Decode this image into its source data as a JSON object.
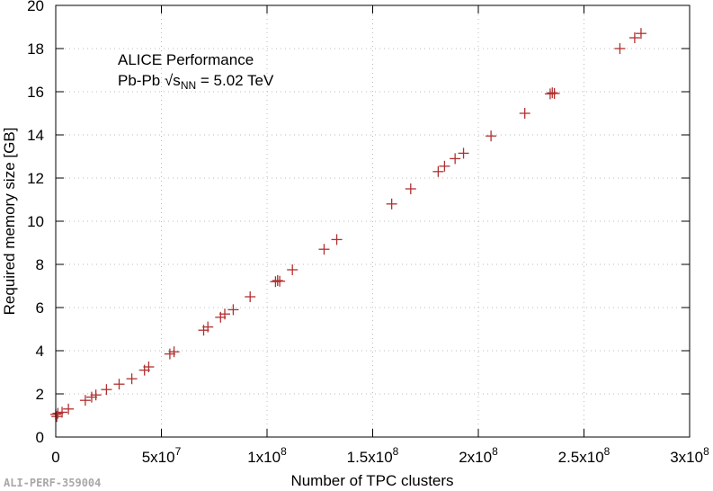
{
  "chart_data": {
    "type": "scatter",
    "title": "",
    "xlabel": "Number of TPC clusters",
    "ylabel": "Required memory size [GB]",
    "xlim": [
      0,
      300000000
    ],
    "ylim": [
      0,
      20
    ],
    "grid": true,
    "x_ticks": [
      {
        "value": 0,
        "mantissa": "0",
        "exp": ""
      },
      {
        "value": 50000000,
        "mantissa": "5x10",
        "exp": "7"
      },
      {
        "value": 100000000,
        "mantissa": "1x10",
        "exp": "8"
      },
      {
        "value": 150000000,
        "mantissa": "1.5x10",
        "exp": "8"
      },
      {
        "value": 200000000,
        "mantissa": "2x10",
        "exp": "8"
      },
      {
        "value": 250000000,
        "mantissa": "2.5x10",
        "exp": "8"
      },
      {
        "value": 300000000,
        "mantissa": "3x10",
        "exp": "8"
      }
    ],
    "y_ticks": [
      "0",
      "2",
      "4",
      "6",
      "8",
      "10",
      "12",
      "14",
      "16",
      "18",
      "20"
    ],
    "annotation": {
      "line1": "ALICE Performance",
      "line2_prefix": "Pb-Pb √s",
      "line2_sub": "NN",
      "line2_suffix": " = 5.02 TeV"
    },
    "marker_color": "#b03030",
    "points": [
      {
        "x": 0,
        "y": 1.05
      },
      {
        "x": 500000,
        "y": 0.95
      },
      {
        "x": 1000000,
        "y": 1.1
      },
      {
        "x": 3000000,
        "y": 1.15
      },
      {
        "x": 6000000,
        "y": 1.3
      },
      {
        "x": 14000000,
        "y": 1.7
      },
      {
        "x": 17000000,
        "y": 1.85
      },
      {
        "x": 19000000,
        "y": 1.95
      },
      {
        "x": 24000000,
        "y": 2.2
      },
      {
        "x": 30000000,
        "y": 2.45
      },
      {
        "x": 36000000,
        "y": 2.7
      },
      {
        "x": 42000000,
        "y": 3.1
      },
      {
        "x": 44000000,
        "y": 3.25
      },
      {
        "x": 54000000,
        "y": 3.85
      },
      {
        "x": 56000000,
        "y": 3.95
      },
      {
        "x": 70000000,
        "y": 4.95
      },
      {
        "x": 72000000,
        "y": 5.1
      },
      {
        "x": 78000000,
        "y": 5.55
      },
      {
        "x": 80000000,
        "y": 5.7
      },
      {
        "x": 84000000,
        "y": 5.9
      },
      {
        "x": 92000000,
        "y": 6.5
      },
      {
        "x": 104000000,
        "y": 7.2
      },
      {
        "x": 105000000,
        "y": 7.25
      },
      {
        "x": 106000000,
        "y": 7.22
      },
      {
        "x": 112000000,
        "y": 7.75
      },
      {
        "x": 127000000,
        "y": 8.7
      },
      {
        "x": 133000000,
        "y": 9.15
      },
      {
        "x": 159000000,
        "y": 10.8
      },
      {
        "x": 168000000,
        "y": 11.5
      },
      {
        "x": 181000000,
        "y": 12.3
      },
      {
        "x": 184000000,
        "y": 12.55
      },
      {
        "x": 189000000,
        "y": 12.9
      },
      {
        "x": 193000000,
        "y": 13.15
      },
      {
        "x": 206000000,
        "y": 13.95
      },
      {
        "x": 222000000,
        "y": 15.0
      },
      {
        "x": 234000000,
        "y": 15.9
      },
      {
        "x": 235000000,
        "y": 15.95
      },
      {
        "x": 236000000,
        "y": 15.92
      },
      {
        "x": 267000000,
        "y": 18.0
      },
      {
        "x": 274000000,
        "y": 18.5
      },
      {
        "x": 277000000,
        "y": 18.7
      }
    ]
  },
  "watermark": "ALI-PERF-359004"
}
